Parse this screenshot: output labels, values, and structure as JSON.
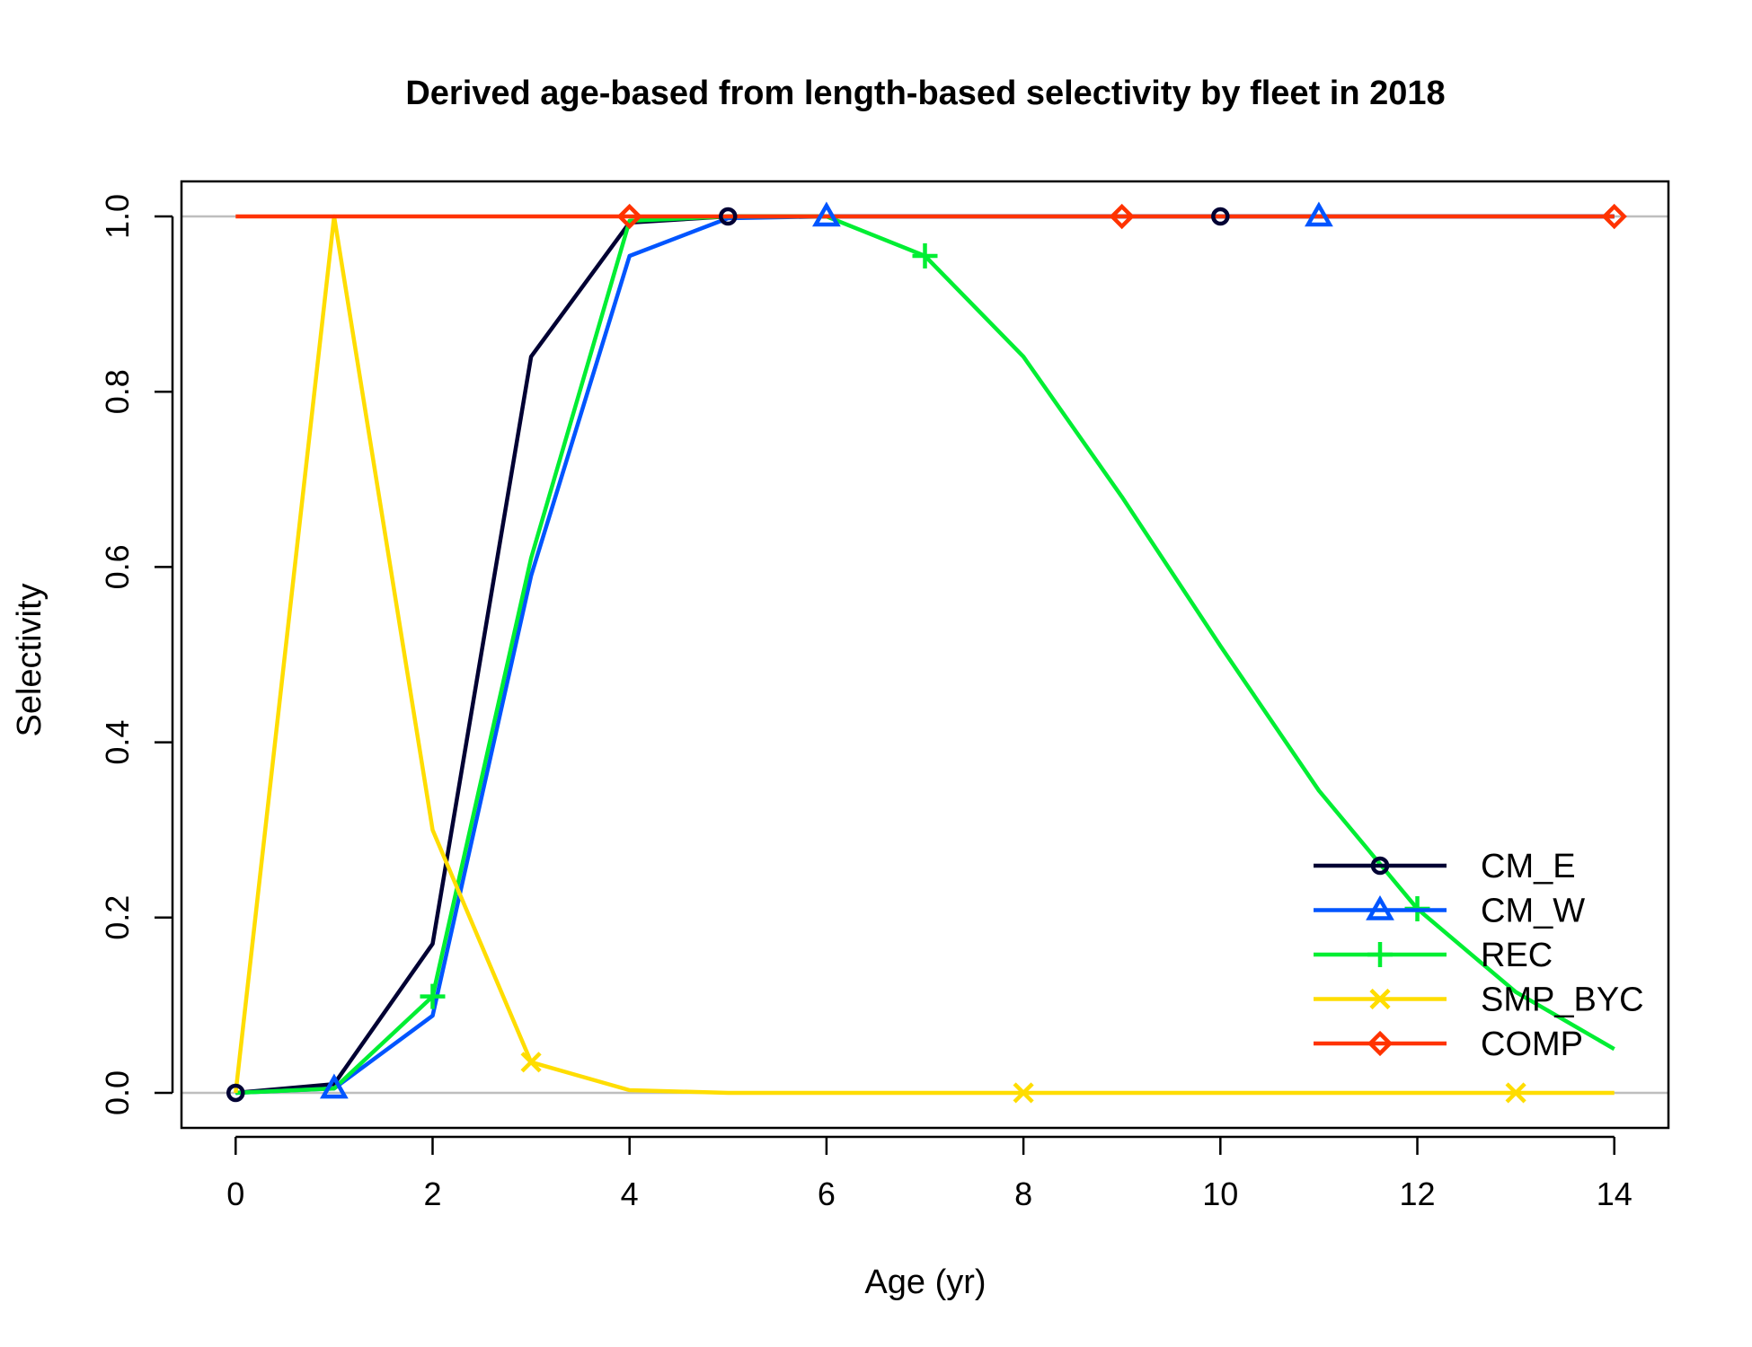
{
  "chart_data": {
    "type": "line",
    "title": "Derived age-based from length-based selectivity by fleet in 2018",
    "xlabel": "Age (yr)",
    "ylabel": "Selectivity",
    "xlim": [
      -0.55,
      14.55
    ],
    "ylim": [
      -0.04,
      1.04
    ],
    "xticks": [
      "0",
      "2",
      "4",
      "6",
      "8",
      "10",
      "12",
      "14"
    ],
    "yticks": [
      "0.0",
      "0.2",
      "0.4",
      "0.6",
      "0.8",
      "1.0"
    ],
    "reference_lines_y": [
      0,
      1
    ],
    "legend_position": "bottom-right",
    "x": [
      0,
      1,
      2,
      3,
      4,
      5,
      6,
      7,
      8,
      9,
      10,
      11,
      12,
      13,
      14
    ],
    "series": [
      {
        "name": "CM_E",
        "color": "#000033",
        "marker": "circle",
        "marker_x": [
          0,
          5,
          10
        ],
        "values": [
          0.0,
          0.01,
          0.17,
          0.84,
          0.993,
          1.0,
          1.0,
          1.0,
          1.0,
          1.0,
          1.0,
          1.0,
          1.0,
          1.0,
          1.0
        ]
      },
      {
        "name": "CM_W",
        "color": "#0055FF",
        "marker": "triangle",
        "marker_x": [
          1,
          6,
          11
        ],
        "values": [
          0.0,
          0.005,
          0.088,
          0.59,
          0.955,
          0.998,
          1.0,
          1.0,
          1.0,
          1.0,
          1.0,
          1.0,
          1.0,
          1.0,
          1.0
        ]
      },
      {
        "name": "REC",
        "color": "#00EE33",
        "marker": "plus",
        "marker_x": [
          2,
          7,
          12
        ],
        "values": [
          0.0,
          0.005,
          0.11,
          0.61,
          0.995,
          1.0,
          1.0,
          0.955,
          0.84,
          0.68,
          0.51,
          0.345,
          0.21,
          0.115,
          0.05
        ]
      },
      {
        "name": "SMP_BYC",
        "color": "#FFDD00",
        "marker": "x",
        "marker_x": [
          3,
          8,
          13
        ],
        "values": [
          0.0,
          1.0,
          0.3,
          0.035,
          0.003,
          0.0,
          0.0,
          0.0,
          0.0,
          0.0,
          0.0,
          0.0,
          0.0,
          0.0,
          0.0
        ]
      },
      {
        "name": "COMP",
        "color": "#FF3300",
        "marker": "diamond",
        "marker_x": [
          4,
          9,
          14
        ],
        "values": [
          1.0,
          1.0,
          1.0,
          1.0,
          1.0,
          1.0,
          1.0,
          1.0,
          1.0,
          1.0,
          1.0,
          1.0,
          1.0,
          1.0,
          1.0
        ]
      }
    ]
  }
}
